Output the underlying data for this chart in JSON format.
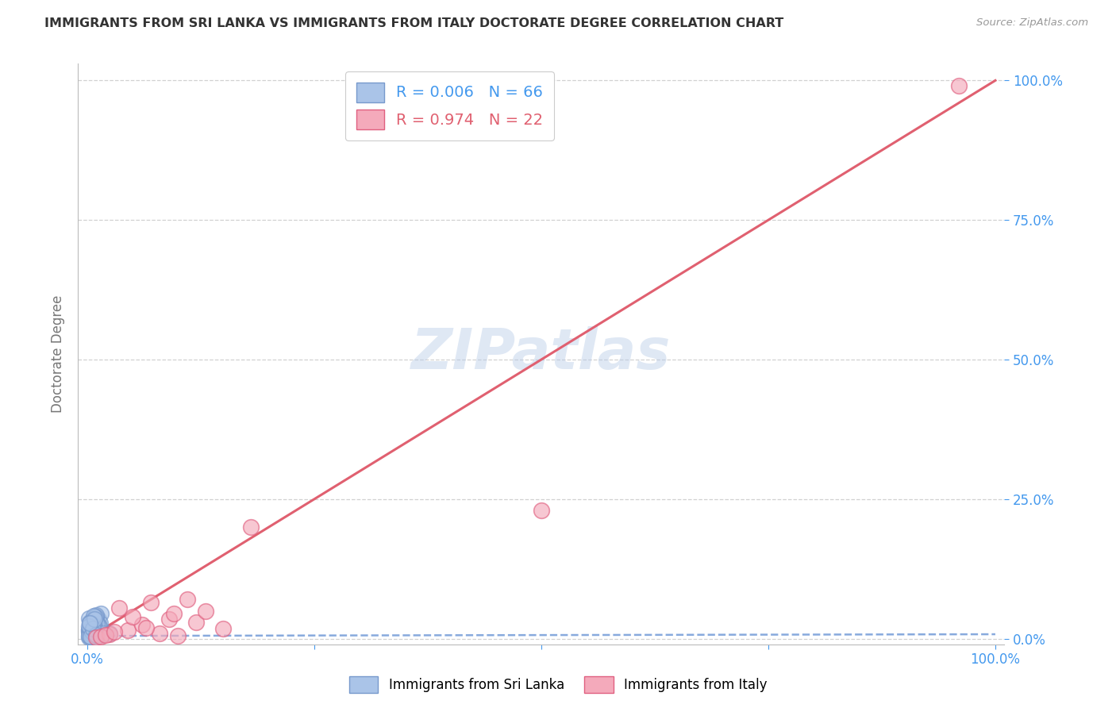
{
  "title": "IMMIGRANTS FROM SRI LANKA VS IMMIGRANTS FROM ITALY DOCTORATE DEGREE CORRELATION CHART",
  "source": "Source: ZipAtlas.com",
  "ylabel": "Doctorate Degree",
  "ylabel_tick_vals": [
    0,
    25,
    50,
    75,
    100
  ],
  "xlabel_tick_vals": [
    0,
    25,
    50,
    75,
    100
  ],
  "xlim": [
    -1,
    101
  ],
  "ylim": [
    -1,
    103
  ],
  "watermark": "ZIPatlas",
  "sri_lanka_R": "0.006",
  "sri_lanka_N": "66",
  "italy_R": "0.974",
  "italy_N": "22",
  "sri_lanka_color": "#aac4e8",
  "italy_color": "#f4aabb",
  "sri_lanka_edge_color": "#7799cc",
  "italy_edge_color": "#e06080",
  "sri_lanka_line_color": "#88aadd",
  "italy_line_color": "#e06070",
  "sri_lanka_scatter_x": [
    0.2,
    0.4,
    0.6,
    0.8,
    1.0,
    1.2,
    1.5,
    0.3,
    0.5,
    0.7,
    0.9,
    1.1,
    1.4,
    0.2,
    0.4,
    0.6,
    0.8,
    1.0,
    1.3,
    0.3,
    0.5,
    0.7,
    0.9,
    1.2,
    0.2,
    0.4,
    0.6,
    0.8,
    1.0,
    0.3,
    0.5,
    0.7,
    2.5,
    0.2,
    0.4,
    0.6,
    0.8,
    1.0,
    0.3,
    0.5,
    0.7,
    0.9,
    1.1,
    0.2,
    0.4,
    0.6,
    0.8,
    0.3,
    0.5,
    0.7,
    0.9,
    0.2,
    0.4,
    0.6,
    0.8,
    0.3,
    0.5,
    0.7,
    1.6,
    1.8,
    0.2,
    0.4,
    0.6,
    0.8,
    1.0,
    0.3
  ],
  "sri_lanka_scatter_y": [
    0.3,
    1.8,
    0.5,
    2.5,
    1.2,
    3.5,
    4.5,
    0.8,
    2.0,
    1.5,
    3.0,
    0.4,
    2.8,
    1.6,
    0.6,
    3.2,
    1.0,
    4.0,
    2.2,
    0.9,
    1.7,
    3.8,
    0.7,
    2.4,
    1.3,
    0.5,
    2.9,
    1.8,
    3.4,
    0.6,
    2.1,
    1.4,
    1.0,
    3.6,
    0.8,
    2.3,
    1.1,
    4.2,
    0.4,
    1.9,
    3.1,
    0.7,
    2.6,
    1.5,
    0.9,
    3.3,
    2.0,
    1.2,
    0.6,
    2.7,
    3.9,
    0.5,
    1.7,
    2.5,
    0.8,
    3.0,
    1.3,
    4.1,
    0.6,
    1.0,
    2.2,
    0.4,
    1.8,
    3.5,
    0.7,
    2.8
  ],
  "italy_scatter_x": [
    1.0,
    2.5,
    4.5,
    6.0,
    8.0,
    10.0,
    12.0,
    15.0,
    3.5,
    5.0,
    7.0,
    9.0,
    11.0,
    13.0,
    18.0,
    50.0,
    96.0,
    1.5,
    2.0,
    3.0,
    6.5,
    9.5
  ],
  "italy_scatter_y": [
    0.2,
    0.8,
    1.5,
    2.5,
    1.0,
    0.5,
    3.0,
    1.8,
    5.5,
    4.0,
    6.5,
    3.5,
    7.0,
    5.0,
    20.0,
    23.0,
    99.0,
    0.4,
    0.6,
    1.2,
    2.0,
    4.5
  ],
  "sri_lanka_trend_x": [
    0,
    100
  ],
  "sri_lanka_trend_y": [
    0.5,
    0.8
  ],
  "italy_trend_x": [
    0,
    100
  ],
  "italy_trend_y": [
    0,
    100
  ],
  "legend_box_color": "#ffffff",
  "legend_border_color": "#cccccc",
  "title_color": "#333333",
  "axis_label_color": "#777777",
  "tick_color": "#4499ee",
  "grid_color": "#cccccc",
  "background_color": "#ffffff",
  "legend_sri_label": "Immigrants from Sri Lanka",
  "legend_italy_label": "Immigrants from Italy"
}
